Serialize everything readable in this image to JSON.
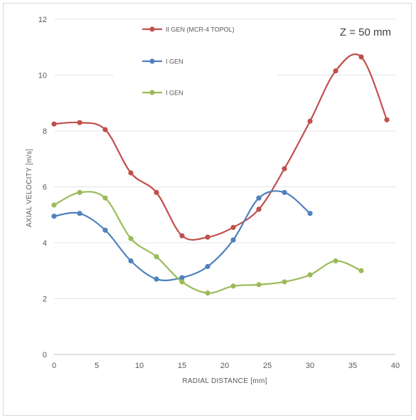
{
  "chart_data": {
    "type": "line",
    "title": "",
    "xlabel": "RADIAL DISTANCE [mm]",
    "ylabel": "AXIAL VELOCITY [m/s]",
    "xlim": [
      0,
      40
    ],
    "ylim": [
      0,
      12
    ],
    "x_ticks": [
      "0",
      "5",
      "10",
      "15",
      "20",
      "25",
      "30",
      "35",
      "40"
    ],
    "y_ticks": [
      "0",
      "2",
      "4",
      "6",
      "8",
      "10",
      "12"
    ],
    "grid": "horizontal",
    "legend_position": "top-left",
    "annotation": "Z = 50 mm",
    "series": [
      {
        "name": "II GEN (MCR-4 TOPOL)",
        "color": "#c0504d",
        "x": [
          0,
          3,
          6,
          9,
          12,
          15,
          18,
          21,
          24,
          27,
          30,
          33,
          36,
          39
        ],
        "y": [
          8.25,
          8.3,
          8.05,
          6.5,
          5.8,
          4.25,
          4.2,
          4.55,
          5.2,
          6.65,
          8.35,
          10.15,
          10.65,
          8.4
        ]
      },
      {
        "name": "I GEN",
        "color": "#4f81bd",
        "x": [
          0,
          3,
          6,
          9,
          12,
          15,
          18,
          21,
          24,
          27,
          30
        ],
        "y": [
          4.95,
          5.05,
          4.45,
          3.35,
          2.7,
          2.75,
          3.15,
          4.1,
          5.6,
          5.8,
          5.05
        ]
      },
      {
        "name": "I GEN",
        "color": "#9bbb59",
        "x": [
          0,
          3,
          6,
          9,
          12,
          15,
          18,
          21,
          24,
          27,
          30,
          33,
          36
        ],
        "y": [
          5.35,
          5.8,
          5.6,
          4.15,
          3.5,
          2.6,
          2.2,
          2.45,
          2.5,
          2.6,
          2.85,
          3.35,
          3.0
        ]
      }
    ]
  }
}
